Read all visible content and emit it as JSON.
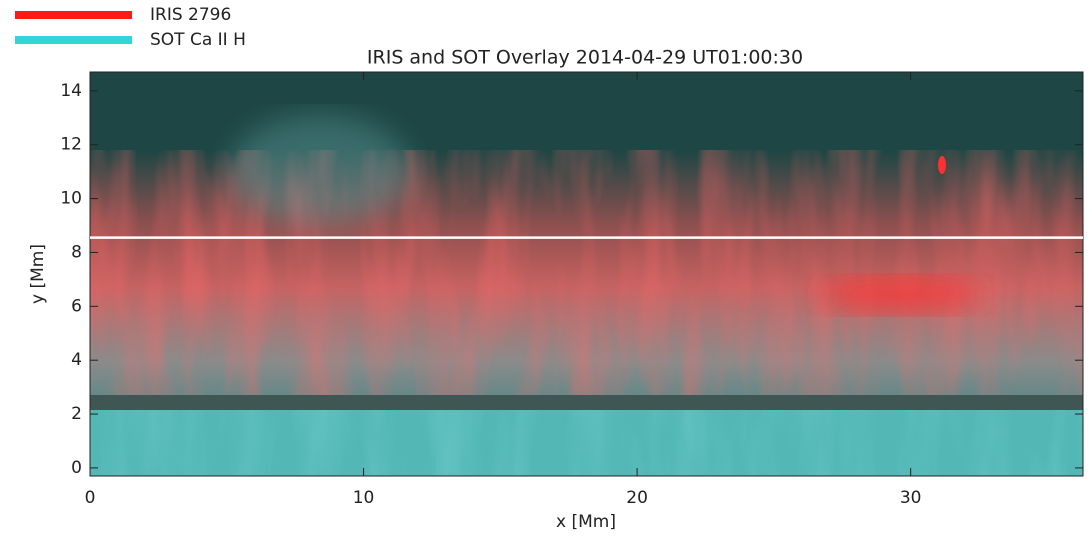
{
  "chart_data": {
    "type": "image",
    "title": "IRIS and SOT Overlay 2014-04-29 UT01:00:30",
    "xlabel": "x [Mm]",
    "ylabel": "y [Mm]",
    "series": [
      {
        "name": "IRIS 2796",
        "color": "#ff1a1a"
      },
      {
        "name": "SOT Ca II H",
        "color": "#33d6d6"
      }
    ],
    "xlim": [
      0,
      36.3
    ],
    "ylim": [
      -0.3,
      14.7
    ],
    "xticks": [
      0,
      10,
      20,
      30
    ],
    "yticks": [
      0,
      2,
      4,
      6,
      8,
      10,
      12,
      14
    ],
    "hline": 8.55
  }
}
